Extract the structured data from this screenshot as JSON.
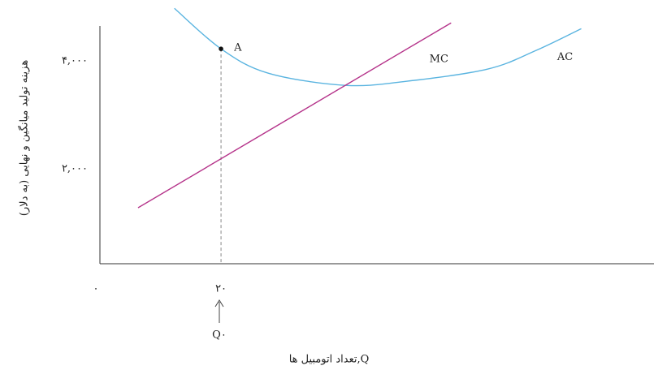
{
  "chart_data": {
    "type": "line",
    "ylabel": "هزینه تولید میانگین و نهایی (به دلار)",
    "xlabel": "Q,تعداد اتومبیل ها",
    "xlim": [
      0,
      91.5
    ],
    "ylim": [
      240,
      4650
    ],
    "xticks": [
      {
        "value": 0,
        "label": "۰"
      },
      {
        "value": 20,
        "label": "۲۰"
      }
    ],
    "yticks": [
      {
        "value": 2000,
        "label": "۲,۰۰۰"
      },
      {
        "value": 4000,
        "label": "۴,۰۰۰"
      }
    ],
    "marker_label": "Q۰",
    "series": [
      {
        "name": "AC",
        "color": "#5ab4e0",
        "x": [
          12.3,
          20,
          27.8,
          40.5,
          50.6,
          64,
          72,
          79.5
        ],
        "values": [
          4977,
          4226,
          3774,
          3549,
          3624,
          3850,
          4195,
          4600
        ]
      },
      {
        "name": "MC",
        "color": "#b5338a",
        "x": [
          6.3,
          58
        ],
        "values": [
          1278,
          4707
        ]
      }
    ],
    "points": [
      {
        "label": "A",
        "x": 20,
        "y": 4226
      }
    ]
  }
}
